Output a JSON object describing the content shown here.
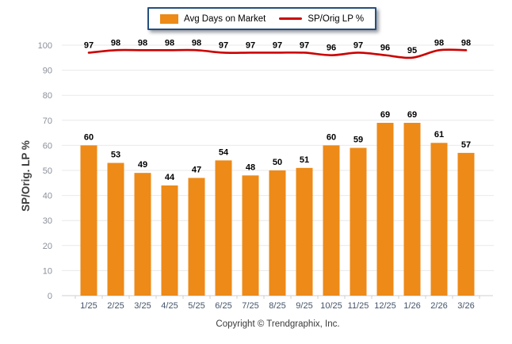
{
  "legend": {
    "items": [
      {
        "label": "Avg Days on Market",
        "series": "bars"
      },
      {
        "label": "SP/Orig LP %",
        "series": "line"
      }
    ]
  },
  "chart_data": {
    "type": "combo",
    "categories": [
      "1/25",
      "2/25",
      "3/25",
      "4/25",
      "5/25",
      "6/25",
      "7/25",
      "8/25",
      "9/25",
      "10/25",
      "11/25",
      "12/25",
      "1/26",
      "2/26",
      "3/26"
    ],
    "series": [
      {
        "name": "Avg Days on Market",
        "type": "bar",
        "values": [
          60,
          53,
          49,
          44,
          47,
          54,
          48,
          50,
          51,
          60,
          59,
          69,
          69,
          61,
          57
        ]
      },
      {
        "name": "SP/Orig LP %",
        "type": "line",
        "values": [
          97,
          98,
          98,
          98,
          98,
          97,
          97,
          97,
          97,
          96,
          97,
          96,
          95,
          98,
          98
        ]
      }
    ],
    "ylabel": "SP/Orig. LP %",
    "xlabel": "",
    "ylim": [
      0,
      100
    ],
    "ytick_step": 10,
    "grid": true,
    "legend_position": "top",
    "value_labels": true
  },
  "footer": {
    "copyright": "Copyright © Trendgraphix, Inc."
  },
  "colors": {
    "bar": "#ED8A18",
    "line": "#CC0000",
    "legend_border": "#264F7D",
    "grid": "#E9E9E9",
    "axis": "#CFCFCF",
    "ytick_label": "#8A8F99",
    "xtick_label": "#44546A",
    "value_label": "#000000"
  }
}
